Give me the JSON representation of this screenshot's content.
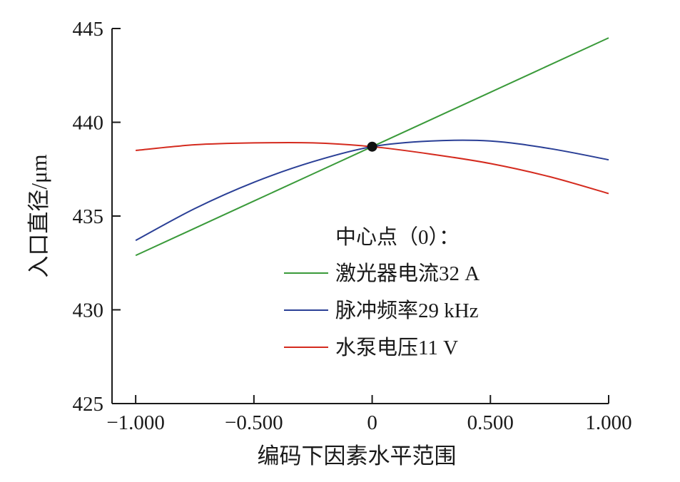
{
  "chart_data": {
    "type": "line",
    "xlabel": "编码下因素水平范围",
    "ylabel": "入口直径/μm",
    "xlim": [
      -1.1,
      1.0
    ],
    "ylim": [
      425,
      445
    ],
    "x_ticks": [
      -1.0,
      -0.5,
      0,
      0.5,
      1.0
    ],
    "x_tick_labels": [
      "−1.000",
      "−0.500",
      "0",
      "0.500",
      "1.000"
    ],
    "y_ticks": [
      425,
      430,
      435,
      440,
      445
    ],
    "y_tick_labels": [
      "425",
      "430",
      "435",
      "440",
      "445"
    ],
    "grid": false,
    "legend_position": "center-right",
    "legend_title": "中心点（0）：",
    "center_point": {
      "x": 0,
      "y": 438.7,
      "color": "#111111"
    },
    "series": [
      {
        "name": "激光器电流32 A",
        "color": "#3a9a3a",
        "x": [
          -1.0,
          -0.5,
          0.0,
          0.5,
          1.0
        ],
        "y": [
          432.9,
          435.8,
          438.7,
          441.6,
          444.5
        ]
      },
      {
        "name": "脉冲频率29 kHz",
        "color": "#2a3f96",
        "x": [
          -1.0,
          -0.75,
          -0.5,
          -0.25,
          0.0,
          0.25,
          0.5,
          0.75,
          1.0
        ],
        "y": [
          433.7,
          435.4,
          436.8,
          437.9,
          438.7,
          439.0,
          439.0,
          438.6,
          438.0
        ]
      },
      {
        "name": "水泵电压11 V",
        "color": "#d42a1e",
        "x": [
          -1.0,
          -0.75,
          -0.5,
          -0.25,
          0.0,
          0.25,
          0.5,
          0.75,
          1.0
        ],
        "y": [
          438.5,
          438.8,
          438.9,
          438.9,
          438.7,
          438.3,
          437.8,
          437.1,
          436.2
        ]
      }
    ]
  }
}
